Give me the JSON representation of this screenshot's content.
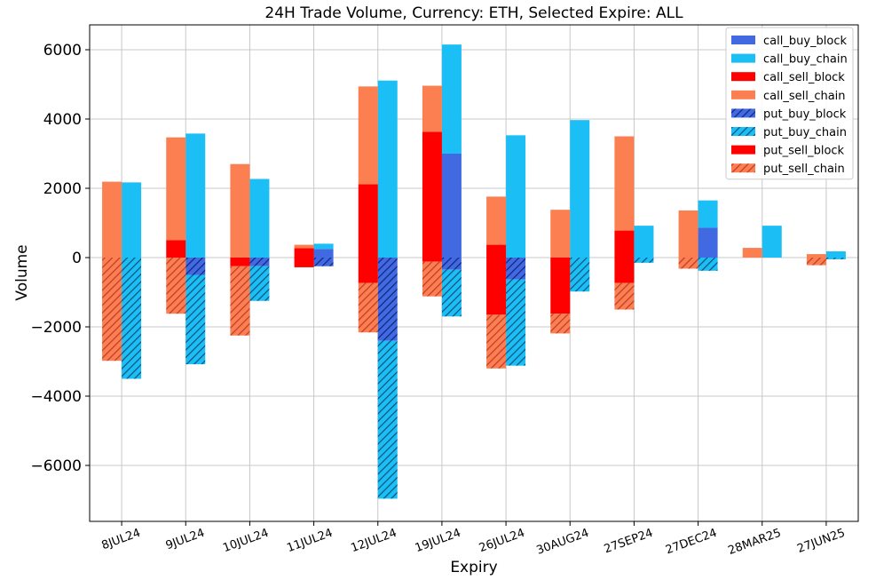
{
  "chart_data": {
    "type": "bar",
    "title": "24H Trade Volume, Currency: ETH, Selected Expire: ALL",
    "xlabel": "Expiry",
    "ylabel": "Volume",
    "ylim": [
      -7600,
      6800
    ],
    "yticks": [
      -6000,
      -4000,
      -2000,
      0,
      2000,
      4000,
      6000
    ],
    "ytick_labels": [
      "−6000",
      "−4000",
      "−2000",
      "0",
      "2000",
      "4000",
      "6000"
    ],
    "grid": true,
    "legend_position": "top-right",
    "categories": [
      "8JUL24",
      "9JUL24",
      "10JUL24",
      "11JUL24",
      "12JUL24",
      "19JUL24",
      "26JUL24",
      "30AUG24",
      "27SEP24",
      "27DEC24",
      "28MAR25",
      "27JUN25"
    ],
    "series": [
      {
        "name": "call_buy_block",
        "color": "#4169e1",
        "hatch": false,
        "side": "buy",
        "values": [
          0,
          0,
          0,
          250,
          0,
          3000,
          0,
          0,
          0,
          860,
          0,
          0
        ]
      },
      {
        "name": "call_buy_chain",
        "color": "#1bbff5",
        "hatch": false,
        "side": "buy",
        "values": [
          2170,
          3580,
          2270,
          150,
          5110,
          3150,
          3530,
          3970,
          920,
          790,
          920,
          180
        ]
      },
      {
        "name": "call_sell_block",
        "color": "#ff0000",
        "hatch": false,
        "side": "sell",
        "values": [
          0,
          500,
          0,
          270,
          2120,
          3630,
          370,
          0,
          780,
          0,
          0,
          0
        ]
      },
      {
        "name": "call_sell_chain",
        "color": "#fb7f50",
        "hatch": false,
        "side": "sell",
        "values": [
          2190,
          2970,
          2700,
          100,
          2820,
          1330,
          1390,
          1380,
          2720,
          1360,
          280,
          100
        ]
      },
      {
        "name": "put_buy_block",
        "color": "#4169e1",
        "hatch": true,
        "side": "buy",
        "values": [
          0,
          -500,
          -250,
          -250,
          -2400,
          -350,
          -630,
          0,
          0,
          0,
          0,
          0
        ]
      },
      {
        "name": "put_buy_chain",
        "color": "#1bbff5",
        "hatch": true,
        "side": "buy",
        "values": [
          -3500,
          -2580,
          -1000,
          0,
          -4560,
          -1350,
          -2490,
          -980,
          -150,
          -380,
          0,
          -50
        ]
      },
      {
        "name": "put_sell_block",
        "color": "#ff0000",
        "hatch": false,
        "side": "sell",
        "values": [
          0,
          0,
          -250,
          -280,
          -730,
          -120,
          -1650,
          -1620,
          -730,
          0,
          0,
          0
        ]
      },
      {
        "name": "put_sell_chain",
        "color": "#fb7f50",
        "hatch": true,
        "side": "sell",
        "values": [
          -2980,
          -1620,
          -2000,
          0,
          -1430,
          -1000,
          -1550,
          -570,
          -770,
          -320,
          0,
          -220
        ]
      }
    ]
  }
}
